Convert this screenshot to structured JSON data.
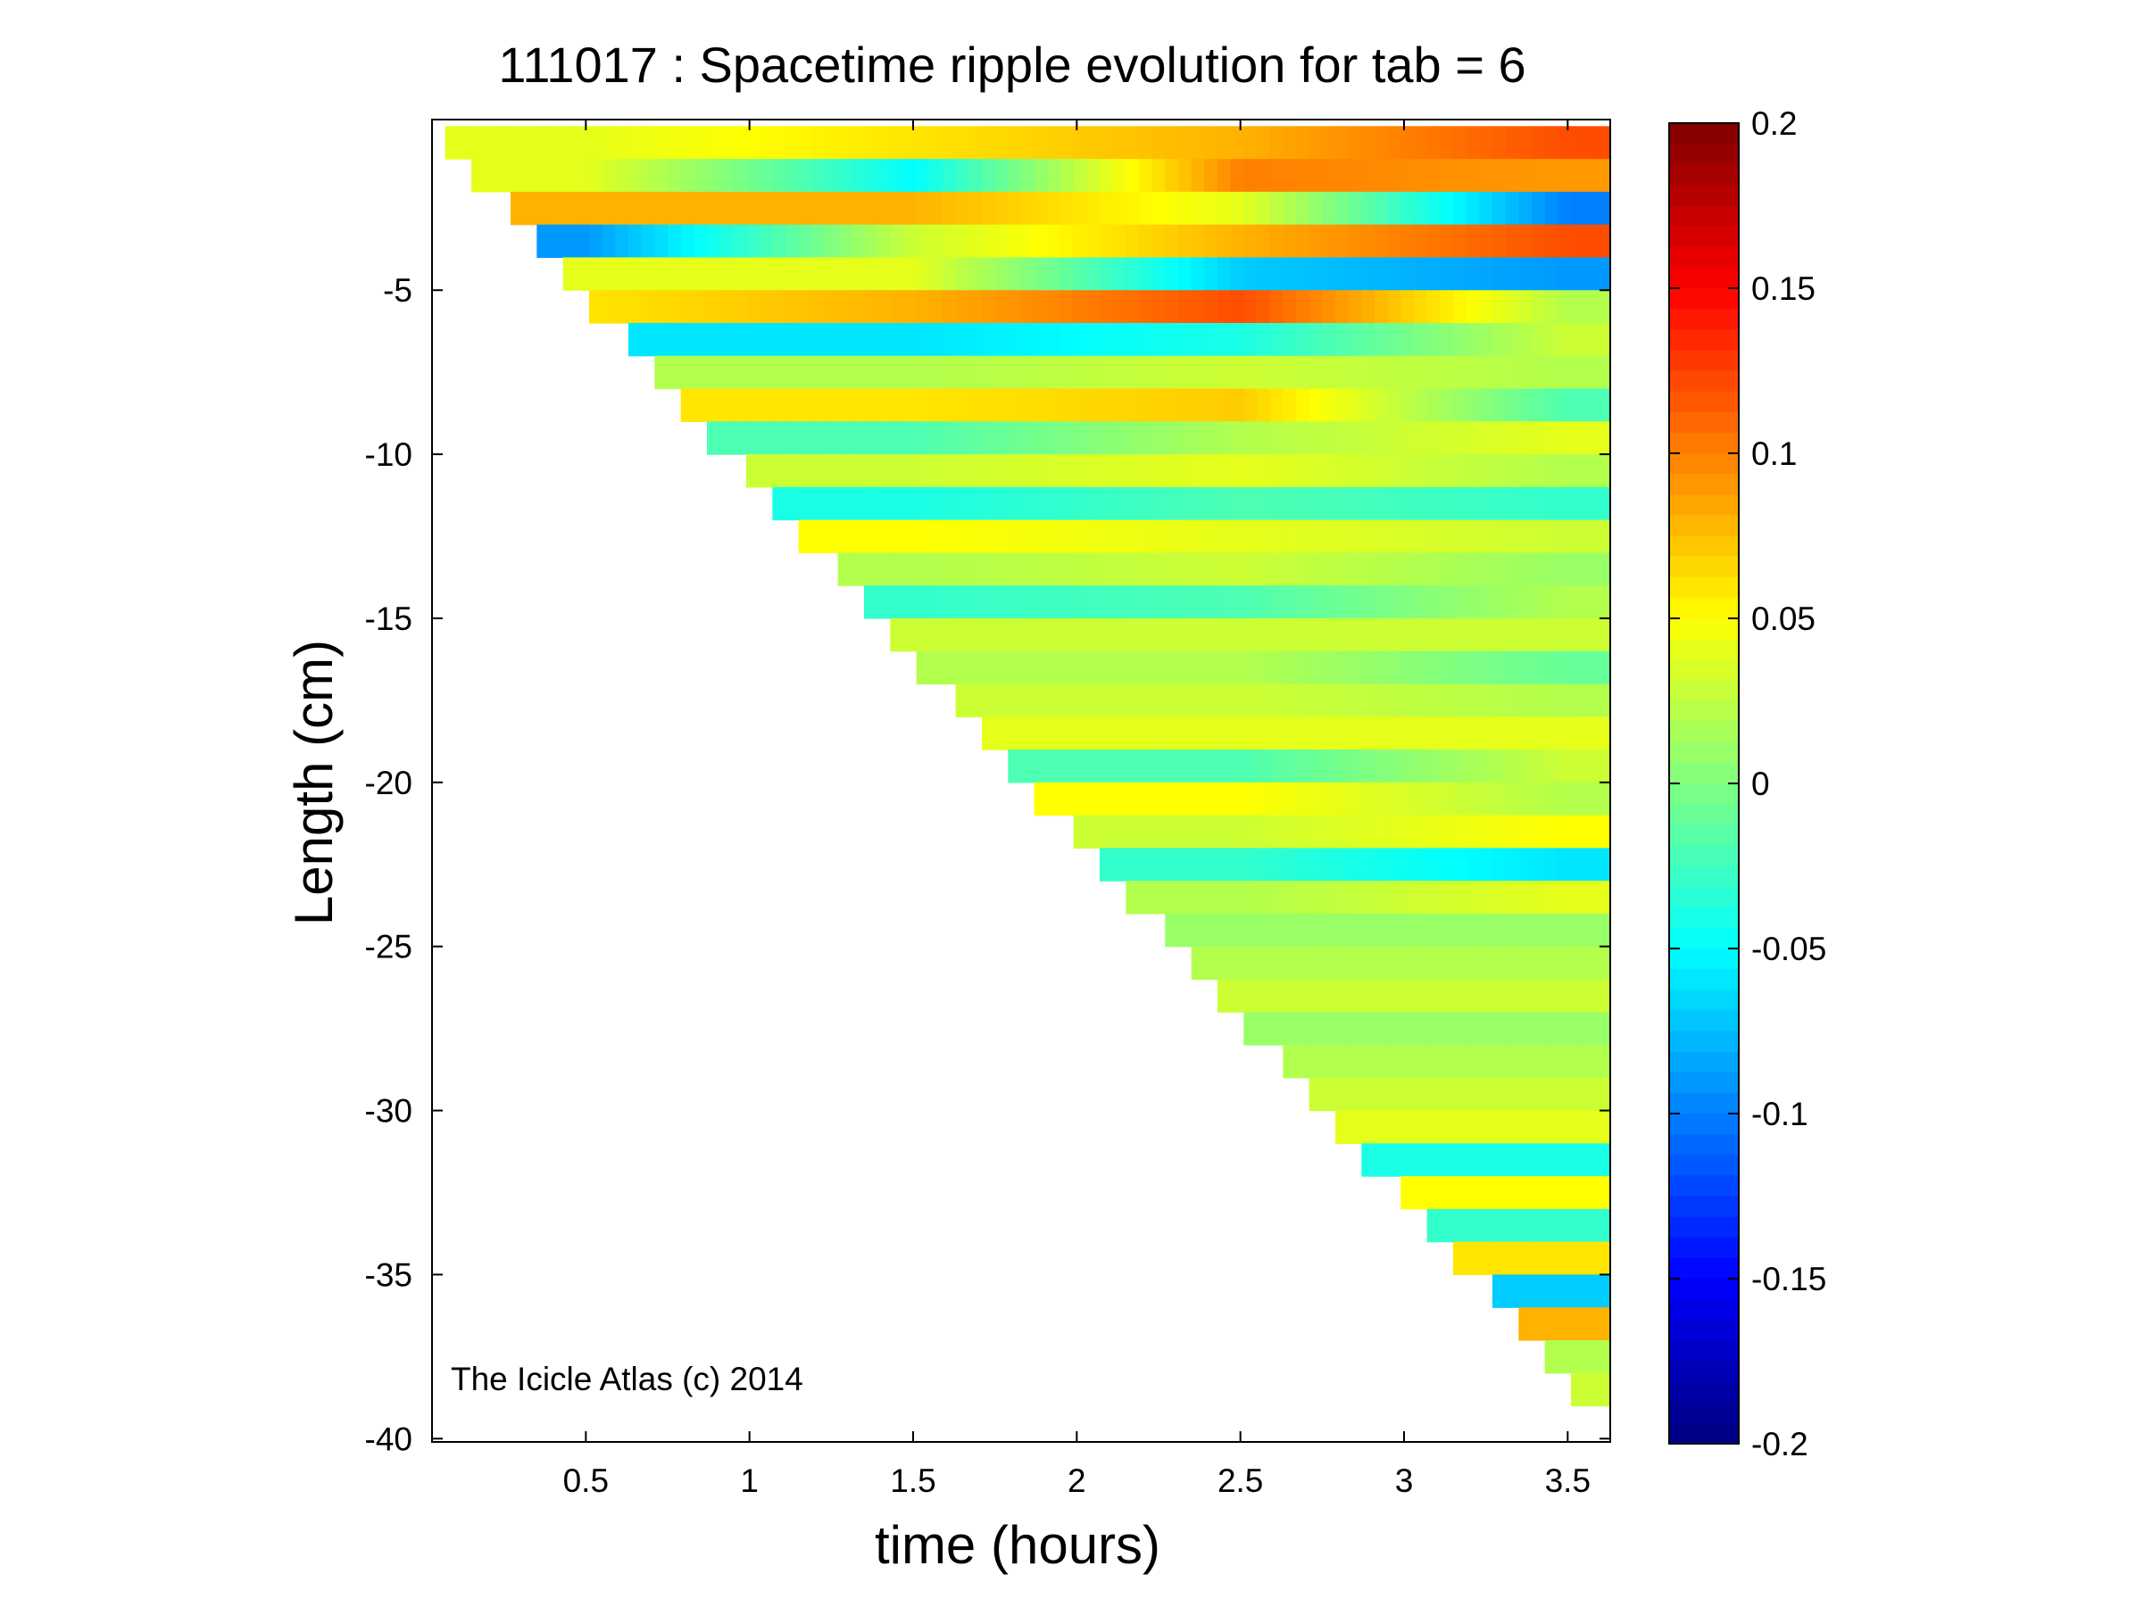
{
  "chart_data": {
    "type": "heatmap",
    "title": "111017 : Spacetime ripple evolution for tab = 6",
    "xlabel": "time (hours)",
    "ylabel": "Length (cm)",
    "xlim": [
      0.03,
      3.63
    ],
    "ylim": [
      -40.1,
      0.2
    ],
    "x_ticks": [
      0.5,
      1,
      1.5,
      2,
      2.5,
      3,
      3.5
    ],
    "x_tick_labels": [
      "0.5",
      "1",
      "1.5",
      "2",
      "2.5",
      "3",
      "3.5"
    ],
    "y_ticks": [
      -5,
      -10,
      -15,
      -20,
      -25,
      -30,
      -35,
      -40
    ],
    "y_tick_labels": [
      "-5",
      "-10",
      "-15",
      "-20",
      "-25",
      "-30",
      "-35",
      "-40"
    ],
    "colormap": "jet",
    "clim": [
      -0.2,
      0.2
    ],
    "colorbar_ticks": [
      0.2,
      0.15,
      0.1,
      0.05,
      0,
      -0.05,
      -0.1,
      -0.15,
      -0.2
    ],
    "colorbar_tick_labels": [
      "0.2",
      "0.15",
      "0.1",
      "0.05",
      "0",
      "-0.05",
      "-0.1",
      "-0.15",
      "-0.2"
    ],
    "grid": false,
    "data_region": "lower triangle bounded by length ≈ -0.6 - 11.0·(t - 0.08) cm; blank above that front",
    "length_grid": [
      -0.5,
      -1.5,
      -2.5,
      -3.5,
      -4.5,
      -5.5,
      -6.5,
      -7.5,
      -8.5,
      -9.5,
      -10.5,
      -11.5,
      -12.5,
      -13.5,
      -14.5,
      -15.5,
      -16.5,
      -17.5,
      -18.5,
      -19.5,
      -20.5,
      -21.5,
      -22.5,
      -23.5,
      -24.5,
      -25.5,
      -26.5,
      -27.5,
      -28.5,
      -29.5,
      -30.5,
      -31.5,
      -32.5,
      -33.5,
      -34.5,
      -35.5,
      -36.5,
      -37.5,
      -38.5,
      -39.5
    ],
    "time_samples": [
      0.5,
      1.5,
      2.5,
      3.5
    ],
    "values_at_time_samples": [
      [
        0.04,
        0.06,
        0.08,
        0.12
      ],
      [
        0.04,
        -0.05,
        0.1,
        0.09
      ],
      [
        0.08,
        0.08,
        0.04,
        -0.1
      ],
      [
        -0.09,
        0.03,
        0.08,
        0.12
      ],
      [
        null,
        0.04,
        -0.07,
        -0.09
      ],
      [
        0.06,
        0.08,
        0.12,
        0.02
      ],
      [
        null,
        -0.06,
        -0.04,
        0.03
      ],
      [
        null,
        0.02,
        0.03,
        0.02
      ],
      [
        null,
        0.06,
        0.07,
        -0.02
      ],
      [
        null,
        -0.02,
        0.02,
        0.04
      ],
      [
        null,
        0.03,
        0.04,
        0.02
      ],
      [
        null,
        -0.04,
        -0.02,
        -0.03
      ],
      [
        null,
        0.05,
        0.04,
        0.03
      ],
      [
        null,
        0.02,
        0.03,
        0.01
      ],
      [
        null,
        -0.03,
        -0.02,
        0.02
      ],
      [
        null,
        null,
        0.03,
        0.03
      ],
      [
        null,
        null,
        0.02,
        -0.01
      ],
      [
        null,
        null,
        0.03,
        0.02
      ],
      [
        null,
        null,
        0.04,
        0.04
      ],
      [
        null,
        null,
        -0.02,
        0.03
      ],
      [
        null,
        null,
        0.05,
        0.02
      ],
      [
        null,
        null,
        0.03,
        0.05
      ],
      [
        null,
        null,
        -0.03,
        -0.06
      ],
      [
        null,
        null,
        0.02,
        0.04
      ],
      [
        null,
        null,
        null,
        0.01
      ],
      [
        null,
        null,
        null,
        0.02
      ],
      [
        null,
        null,
        null,
        0.03
      ],
      [
        null,
        null,
        null,
        0.01
      ],
      [
        null,
        null,
        null,
        0.02
      ],
      [
        null,
        null,
        null,
        0.03
      ],
      [
        null,
        null,
        null,
        0.04
      ],
      [
        null,
        null,
        null,
        -0.04
      ],
      [
        null,
        null,
        null,
        0.05
      ],
      [
        null,
        null,
        null,
        -0.03
      ],
      [
        null,
        null,
        null,
        0.06
      ],
      [
        null,
        null,
        null,
        -0.07
      ],
      [
        null,
        null,
        null,
        0.08
      ],
      [
        null,
        null,
        null,
        0.02
      ],
      [
        null,
        null,
        null,
        0.03
      ],
      [
        null,
        null,
        null,
        0.02
      ]
    ]
  },
  "watermark": "The Icicle Atlas (c) 2014"
}
